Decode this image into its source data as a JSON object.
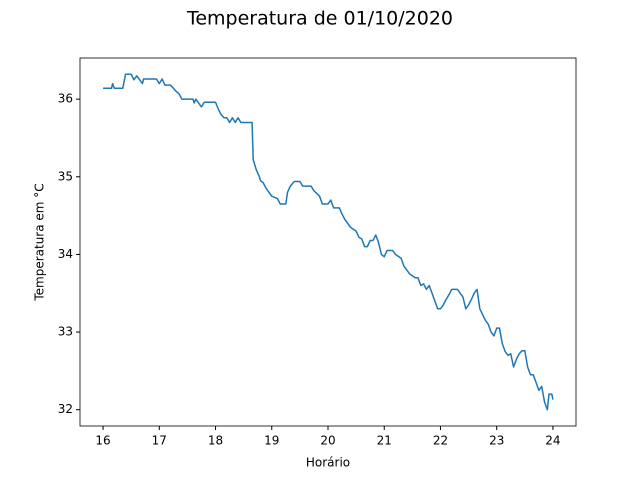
{
  "chart_data": {
    "type": "line",
    "title": "Temperatura de 01/10/2020",
    "x_label": "Horário",
    "y_label": "Temperatura em °C",
    "series": [
      {
        "color": "#1f77b4",
        "x": [
          16.0,
          16.15,
          16.17,
          16.2,
          16.35,
          16.4,
          16.5,
          16.55,
          16.6,
          16.65,
          16.7,
          16.72,
          16.95,
          17.0,
          17.05,
          17.1,
          17.2,
          17.3,
          17.35,
          17.4,
          17.6,
          17.62,
          17.65,
          17.7,
          17.75,
          17.8,
          18.0,
          18.05,
          18.1,
          18.15,
          18.2,
          18.25,
          18.3,
          18.35,
          18.4,
          18.45,
          18.5,
          18.65,
          18.67,
          18.72,
          18.78,
          18.8,
          18.85,
          18.9,
          18.95,
          19.0,
          19.1,
          19.15,
          19.25,
          19.28,
          19.33,
          19.4,
          19.5,
          19.55,
          19.7,
          19.75,
          19.85,
          19.9,
          20.0,
          20.05,
          20.1,
          20.2,
          20.25,
          20.3,
          20.4,
          20.5,
          20.55,
          20.6,
          20.65,
          20.7,
          20.75,
          20.8,
          20.85,
          20.9,
          20.95,
          21.0,
          21.05,
          21.15,
          21.2,
          21.3,
          21.35,
          21.4,
          21.45,
          21.55,
          21.6,
          21.65,
          21.7,
          21.75,
          21.8,
          21.85,
          21.9,
          21.95,
          22.0,
          22.05,
          22.1,
          22.15,
          22.2,
          22.3,
          22.35,
          22.4,
          22.45,
          22.5,
          22.55,
          22.6,
          22.65,
          22.7,
          22.8,
          22.85,
          22.9,
          22.95,
          23.0,
          23.05,
          23.1,
          23.15,
          23.2,
          23.25,
          23.3,
          23.35,
          23.4,
          23.45,
          23.5,
          23.55,
          23.6,
          23.65,
          23.7,
          23.75,
          23.8,
          23.85,
          23.9,
          23.93,
          23.98,
          24.0
        ],
        "values": [
          36.14,
          36.14,
          36.2,
          36.14,
          36.14,
          36.32,
          36.32,
          36.25,
          36.3,
          36.25,
          36.2,
          36.26,
          36.26,
          36.2,
          36.26,
          36.18,
          36.18,
          36.1,
          36.07,
          36.0,
          36.0,
          35.95,
          36.0,
          35.95,
          35.9,
          35.96,
          35.96,
          35.87,
          35.8,
          35.76,
          35.76,
          35.7,
          35.76,
          35.7,
          35.76,
          35.7,
          35.7,
          35.7,
          35.22,
          35.1,
          35.0,
          34.95,
          34.92,
          34.85,
          34.8,
          34.75,
          34.72,
          34.65,
          34.65,
          34.8,
          34.88,
          34.94,
          34.94,
          34.88,
          34.88,
          34.82,
          34.75,
          34.65,
          34.65,
          34.7,
          34.6,
          34.6,
          34.52,
          34.45,
          34.35,
          34.3,
          34.22,
          34.2,
          34.1,
          34.1,
          34.18,
          34.18,
          34.25,
          34.15,
          34.0,
          33.97,
          34.05,
          34.05,
          34.0,
          33.95,
          33.85,
          33.8,
          33.75,
          33.7,
          33.7,
          33.6,
          33.62,
          33.55,
          33.6,
          33.5,
          33.4,
          33.3,
          33.3,
          33.35,
          33.42,
          33.48,
          33.55,
          33.55,
          33.5,
          33.45,
          33.3,
          33.35,
          33.42,
          33.5,
          33.55,
          33.3,
          33.15,
          33.1,
          33.0,
          32.95,
          33.05,
          33.05,
          32.85,
          32.75,
          32.7,
          32.72,
          32.55,
          32.65,
          32.72,
          32.76,
          32.76,
          32.55,
          32.45,
          32.45,
          32.35,
          32.25,
          32.3,
          32.1,
          32.0,
          32.2,
          32.2,
          32.13
        ]
      }
    ],
    "xlim": [
      15.59,
      24.41
    ],
    "ylim": [
      31.79,
      36.53
    ],
    "xticks": [
      16,
      17,
      18,
      19,
      20,
      21,
      22,
      23,
      24
    ],
    "yticks": [
      32,
      33,
      34,
      35,
      36
    ],
    "grid": false
  }
}
